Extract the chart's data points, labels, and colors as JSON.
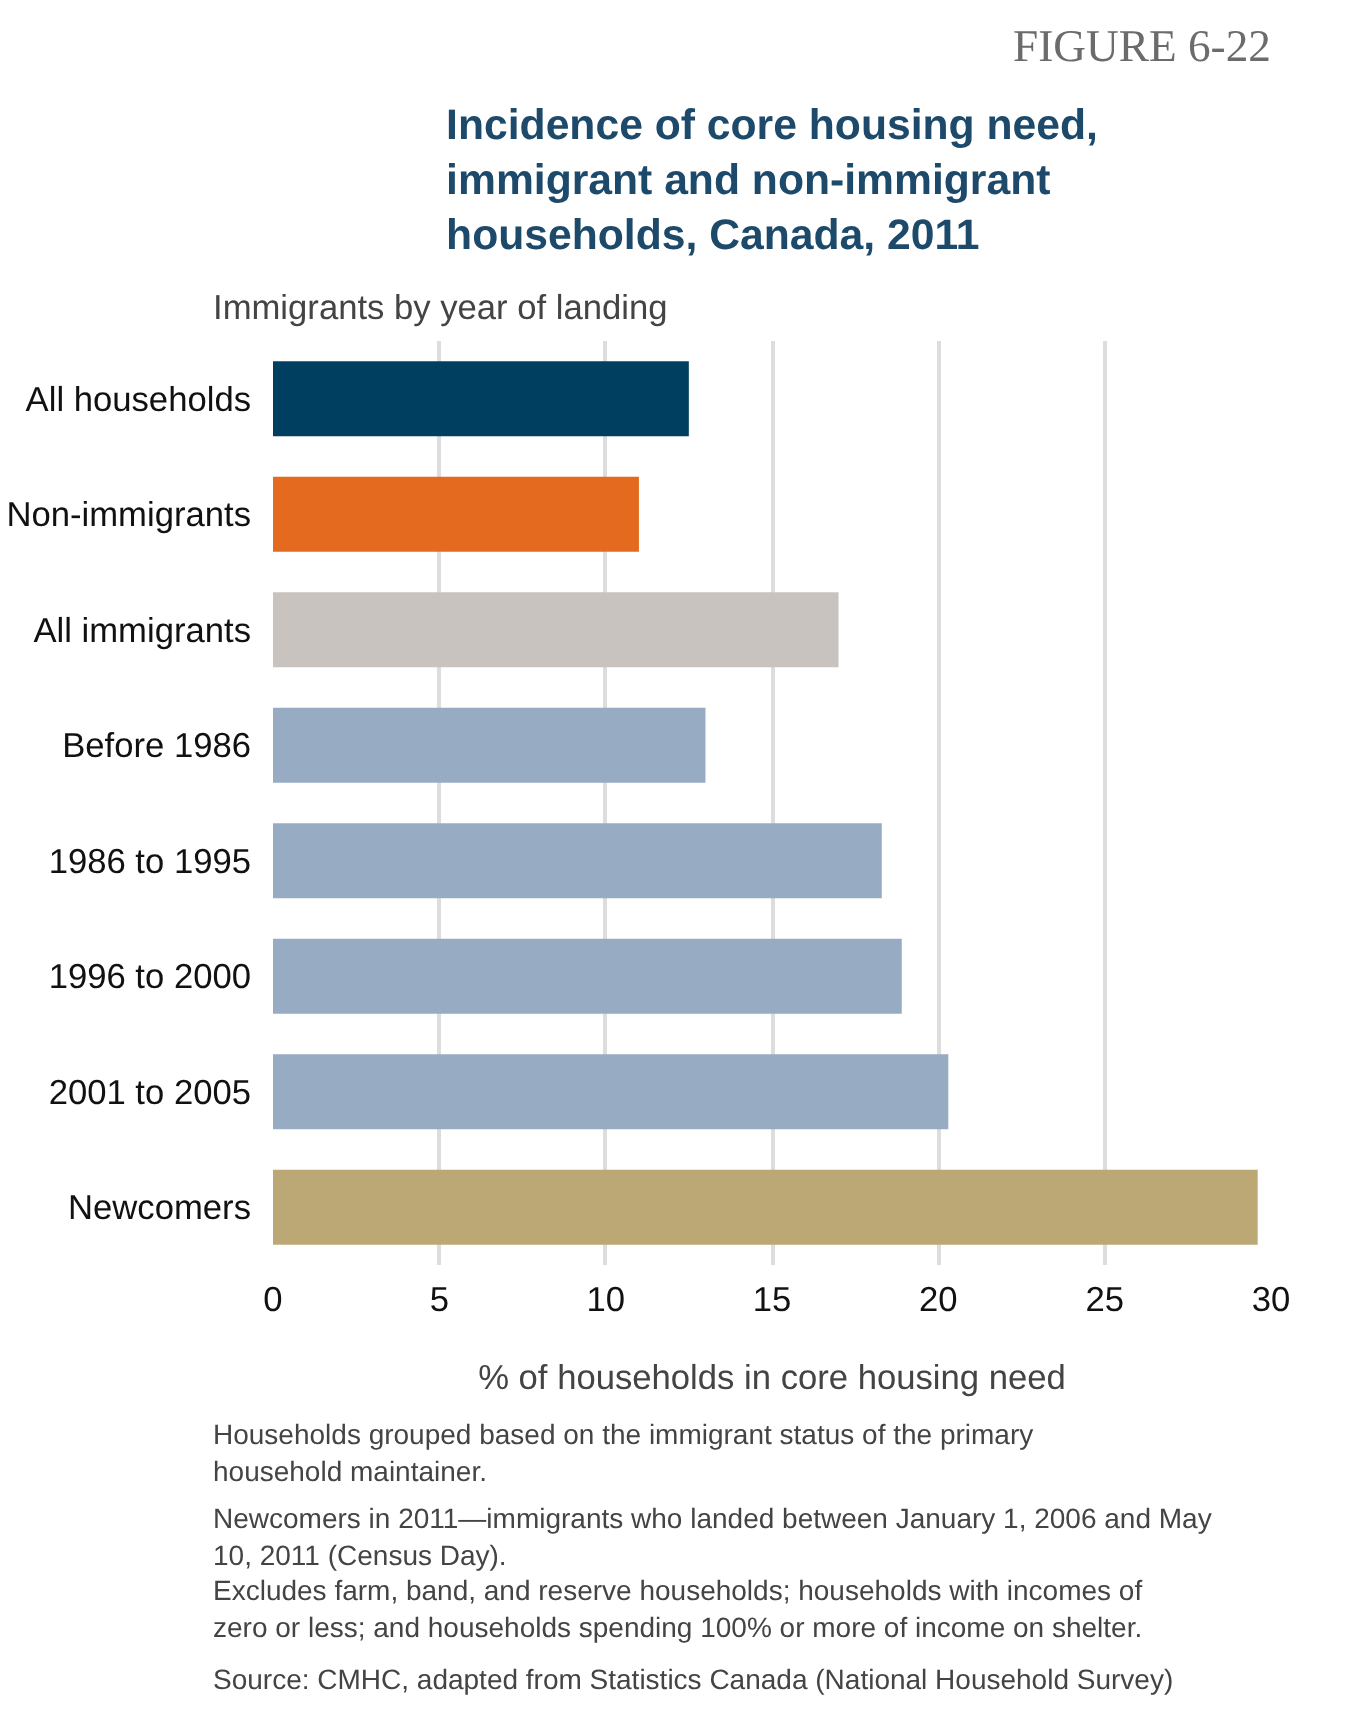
{
  "chart_data": {
    "type": "bar",
    "orientation": "horizontal",
    "title": "Incidence of core housing need, immigrant and non-immigrant households, Canada, 2011",
    "ylabel": "Immigrants by year of landing",
    "xlabel": "% of households in core housing need",
    "categories": [
      "All households",
      "Non-immigrants",
      "All immigrants",
      "Before 1986",
      "1986 to 1995",
      "1996 to 2000",
      "2001 to 2005",
      "Newcomers"
    ],
    "values": [
      12.5,
      11.0,
      17.0,
      13.0,
      18.3,
      18.9,
      20.3,
      29.6
    ],
    "colors": [
      "#003f5f",
      "#e36a1f",
      "#c8c3bf",
      "#97acc3",
      "#97acc3",
      "#97acc3",
      "#97acc3",
      "#bba874"
    ],
    "xlim": [
      0,
      30
    ],
    "xticks": [
      0,
      5,
      10,
      15,
      20,
      25,
      30
    ],
    "grid": "x",
    "annotations": [
      "FIGURE 6-22",
      "Households grouped based on the immigrant status of the primary household maintainer.",
      "Newcomers in 2011—immigrants who landed between January 1, 2006 and May 10, 2011 (Census Day).",
      "Excludes farm, band, and reserve households; households with incomes of zero or less; and households spending 100% or more of income on shelter.",
      "Source: CMHC, adapted from Statistics Canada (National Household Survey)"
    ]
  }
}
